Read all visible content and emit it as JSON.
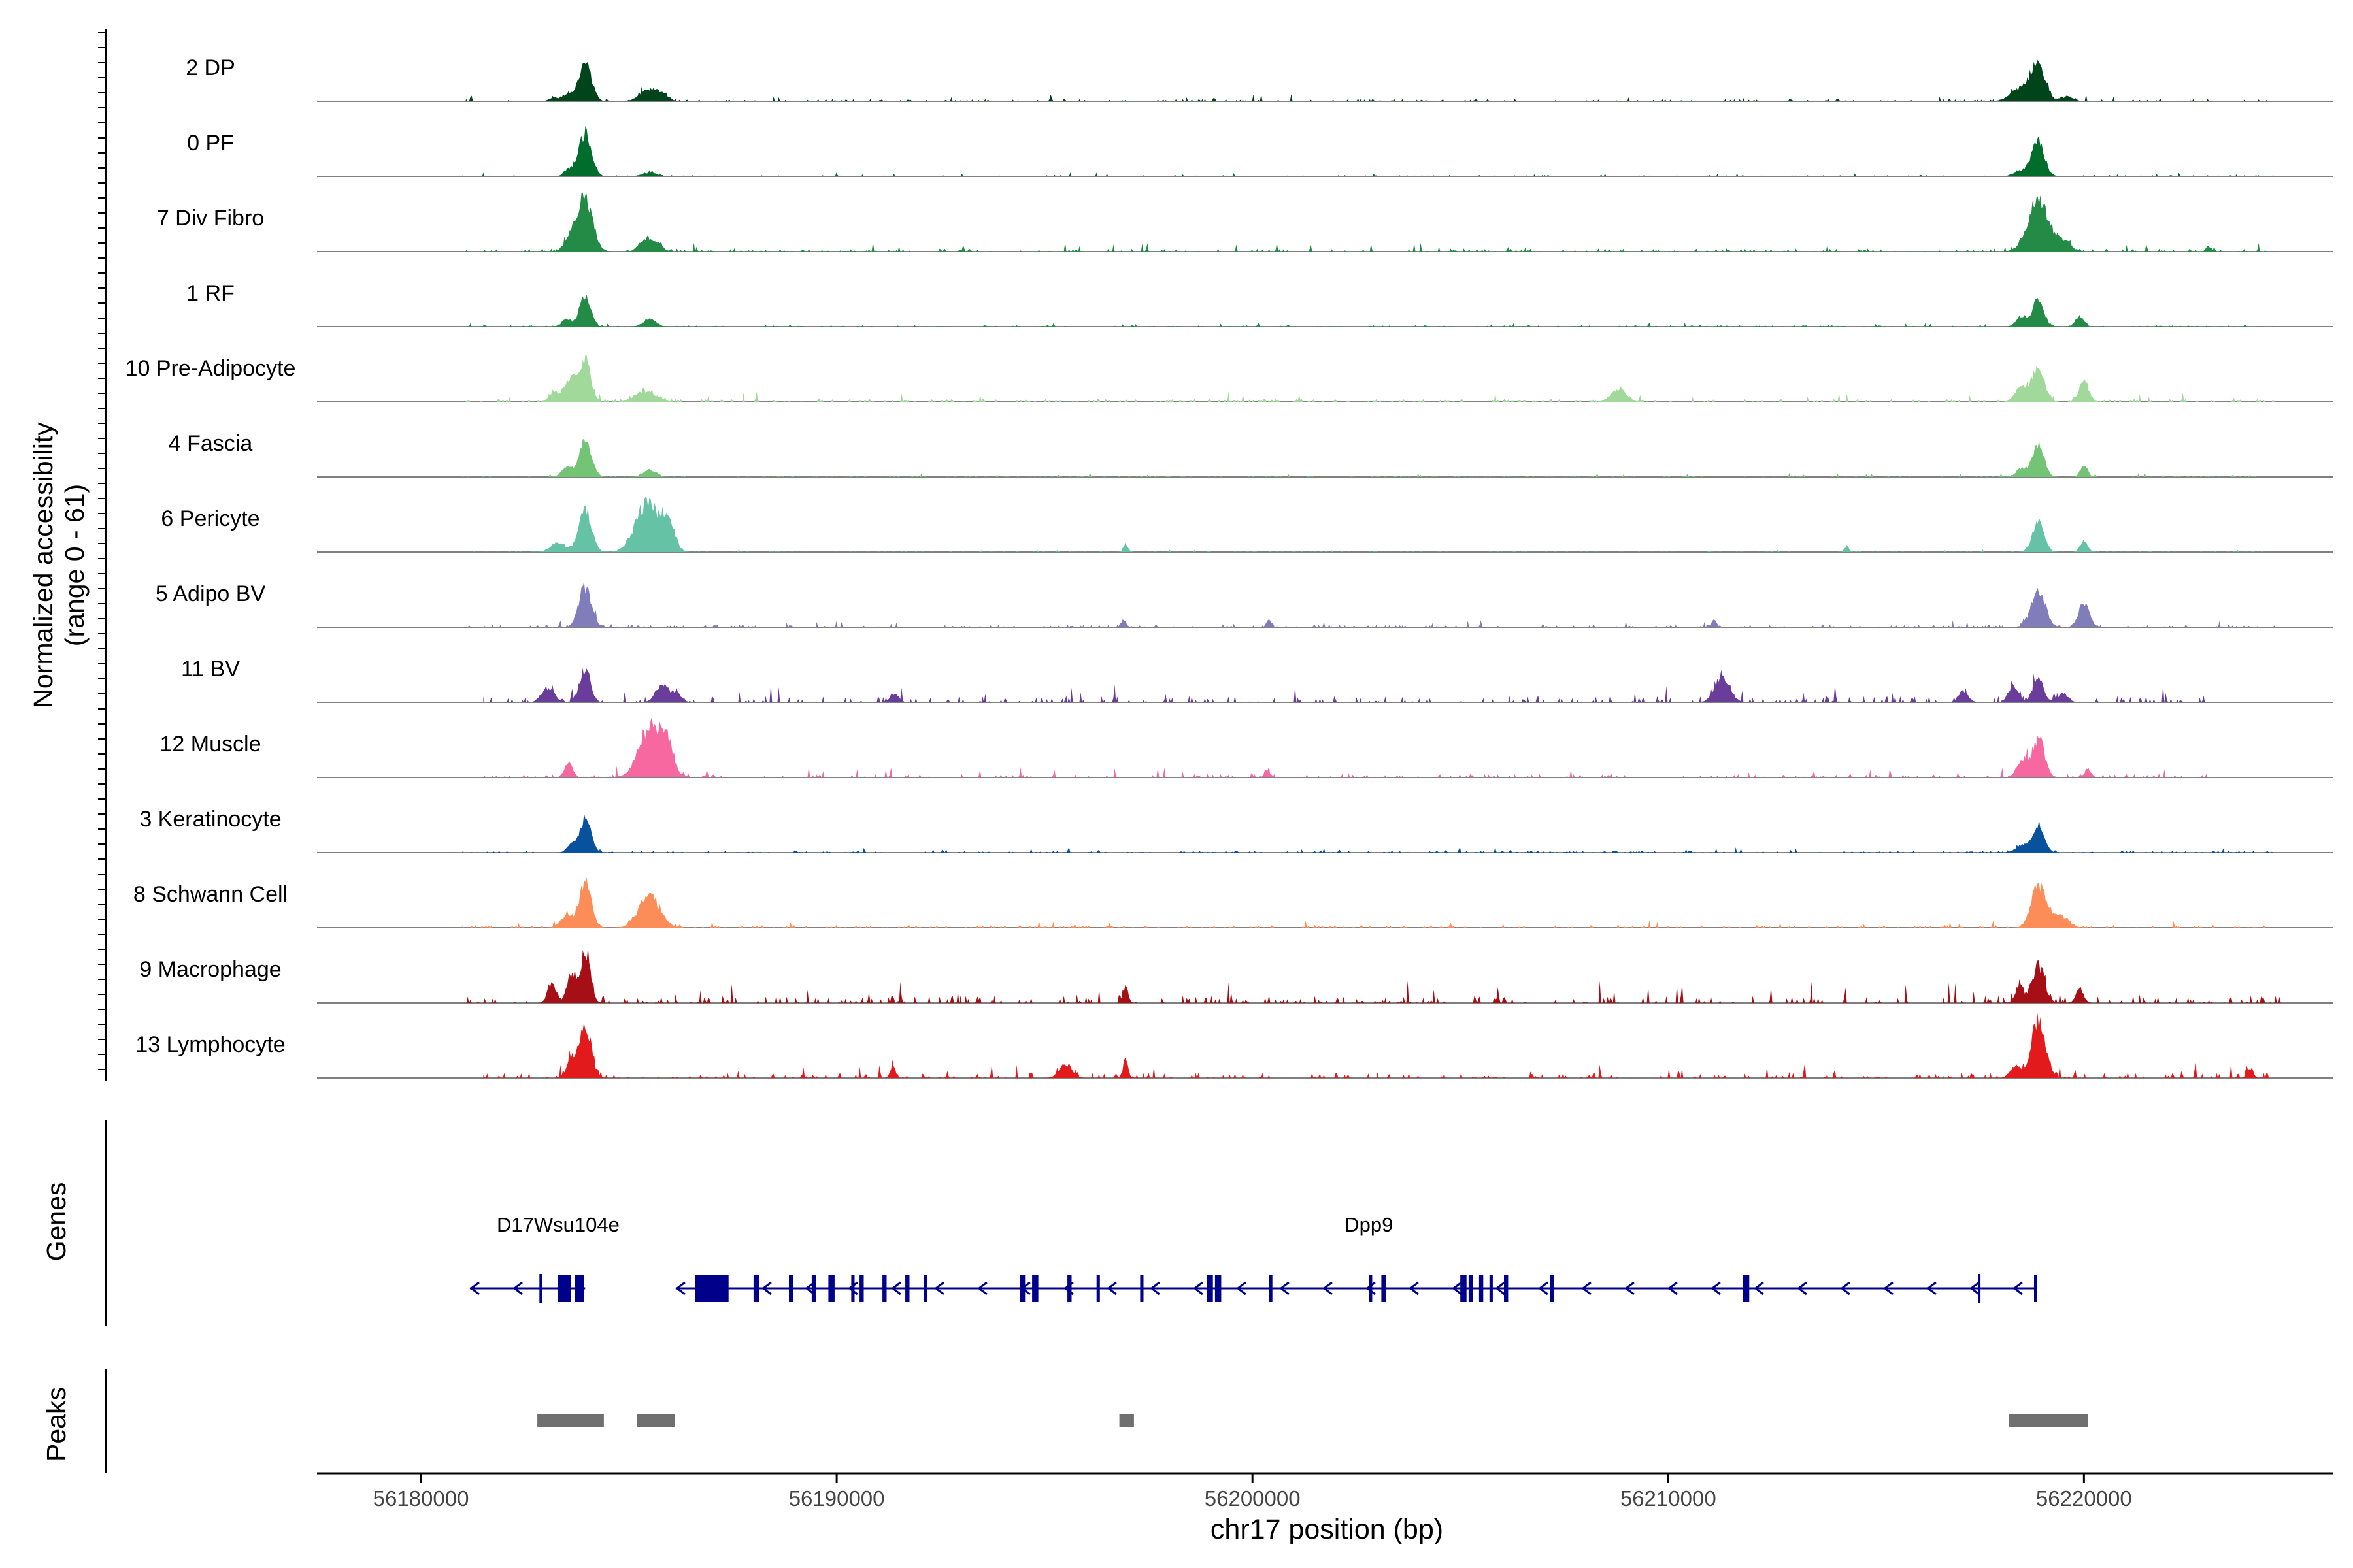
{
  "chart_data": {
    "type": "area",
    "ylabel_line1": "Normalized accessibility",
    "ylabel_line2": "(range 0 - 61)",
    "y_range": [
      0,
      61
    ],
    "xlabel": "chr17 position (bp)",
    "x_range": [
      56177500,
      56226000
    ],
    "x_ticks": [
      56180000,
      56190000,
      56200000,
      56210000,
      56220000
    ],
    "x_tick_labels": [
      "56180000",
      "56190000",
      "56200000",
      "56210000",
      "56220000"
    ],
    "genes_label": "Genes",
    "peaks_label": "Peaks",
    "tracks": [
      {
        "name": "2 DP",
        "color": "#00441b",
        "peaks": [
          [
            56183950,
            42,
            150
          ],
          [
            56183550,
            8,
            120
          ],
          [
            56183200,
            4,
            120
          ],
          [
            56185450,
            12,
            200
          ],
          [
            56185800,
            8,
            150
          ],
          [
            56218900,
            40,
            170
          ],
          [
            56218500,
            14,
            250
          ],
          [
            56219600,
            5,
            150
          ]
        ],
        "noise": 2.2,
        "span": [
          56181000,
          56224600
        ]
      },
      {
        "name": "0 PF",
        "color": "#006d2c",
        "peaks": [
          [
            56183950,
            48,
            150
          ],
          [
            56183550,
            8,
            110
          ],
          [
            56185500,
            4,
            180
          ],
          [
            56218900,
            38,
            150
          ],
          [
            56218500,
            6,
            180
          ]
        ],
        "noise": 1.2,
        "span": [
          56181000,
          56224600
        ]
      },
      {
        "name": "7 Div Fibro",
        "color": "#238b45",
        "peaks": [
          [
            56183950,
            58,
            180
          ],
          [
            56183600,
            14,
            150
          ],
          [
            56185400,
            14,
            150
          ],
          [
            56185700,
            8,
            120
          ],
          [
            56218900,
            55,
            250
          ],
          [
            56219500,
            10,
            180
          ],
          [
            56223000,
            6,
            60
          ]
        ],
        "noise": 3,
        "span": [
          56181000,
          56224600
        ]
      },
      {
        "name": "1 RF",
        "color": "#238b45",
        "peaks": [
          [
            56183950,
            36,
            130
          ],
          [
            56183500,
            8,
            110
          ],
          [
            56185500,
            8,
            150
          ],
          [
            56218900,
            32,
            130
          ],
          [
            56218500,
            12,
            120
          ],
          [
            56219900,
            12,
            100
          ]
        ],
        "noise": 1.3,
        "span": [
          56181000,
          56224600
        ]
      },
      {
        "name": "10 Pre-Adipocyte",
        "color": "#a1d99b",
        "peaks": [
          [
            56183950,
            44,
            130
          ],
          [
            56183600,
            26,
            150
          ],
          [
            56183200,
            10,
            120
          ],
          [
            56185400,
            12,
            250
          ],
          [
            56208800,
            14,
            180
          ],
          [
            56218900,
            36,
            150
          ],
          [
            56218500,
            16,
            150
          ],
          [
            56220000,
            22,
            120
          ]
        ],
        "noise": 3.2,
        "span": [
          56181000,
          56224600
        ]
      },
      {
        "name": "4 Fascia",
        "color": "#74c476",
        "peaks": [
          [
            56183950,
            40,
            150
          ],
          [
            56183500,
            10,
            120
          ],
          [
            56185500,
            8,
            150
          ],
          [
            56218900,
            36,
            140
          ],
          [
            56218500,
            10,
            120
          ],
          [
            56220000,
            12,
            90
          ]
        ],
        "noise": 1.3,
        "span": [
          56181000,
          56224600
        ]
      },
      {
        "name": "6 Pericyte",
        "color": "#66c2a4",
        "peaks": [
          [
            56183950,
            48,
            150
          ],
          [
            56183300,
            10,
            180
          ],
          [
            56185450,
            55,
            280
          ],
          [
            56185950,
            30,
            150
          ],
          [
            56196950,
            8,
            60
          ],
          [
            56214300,
            6,
            60
          ],
          [
            56218900,
            34,
            140
          ],
          [
            56220000,
            12,
            90
          ]
        ],
        "noise": 0.8,
        "span": [
          56181000,
          56224600
        ]
      },
      {
        "name": "5 Adipo BV",
        "color": "#807dba",
        "peaks": [
          [
            56183950,
            44,
            150
          ],
          [
            56196900,
            8,
            60
          ],
          [
            56200400,
            8,
            60
          ],
          [
            56211100,
            8,
            60
          ],
          [
            56218900,
            40,
            170
          ],
          [
            56220000,
            26,
            130
          ]
        ],
        "noise": 2.2,
        "span": [
          56181000,
          56224600
        ]
      },
      {
        "name": "11 BV",
        "color": "#6a3d9a",
        "peaks": [
          [
            56183950,
            36,
            130
          ],
          [
            56183050,
            16,
            150
          ],
          [
            56185800,
            20,
            150
          ],
          [
            56186150,
            10,
            120
          ],
          [
            56191400,
            10,
            100
          ],
          [
            56211300,
            28,
            180
          ],
          [
            56218900,
            26,
            130
          ],
          [
            56217100,
            12,
            120
          ],
          [
            56218300,
            18,
            120
          ],
          [
            56219500,
            10,
            120
          ]
        ],
        "noise": 6,
        "span": [
          56181500,
          56223000
        ]
      },
      {
        "name": "12 Muscle",
        "color": "#f768a1",
        "peaks": [
          [
            56183550,
            16,
            100
          ],
          [
            56185550,
            58,
            280
          ],
          [
            56185950,
            26,
            130
          ],
          [
            56218900,
            42,
            150
          ],
          [
            56218500,
            20,
            120
          ],
          [
            56220100,
            8,
            80
          ],
          [
            56200350,
            8,
            60
          ]
        ],
        "noise": 3.5,
        "span": [
          56181500,
          56223000
        ]
      },
      {
        "name": "3 Keratinocyte",
        "color": "#08519c",
        "peaks": [
          [
            56183950,
            36,
            140
          ],
          [
            56183600,
            8,
            100
          ],
          [
            56218900,
            30,
            140
          ],
          [
            56218500,
            8,
            150
          ]
        ],
        "noise": 1.8,
        "span": [
          56181000,
          56224600
        ]
      },
      {
        "name": "8 Schwann Cell",
        "color": "#fc8d59",
        "peaks": [
          [
            56183950,
            48,
            150
          ],
          [
            56183500,
            12,
            150
          ],
          [
            56185500,
            36,
            250
          ],
          [
            56218900,
            46,
            170
          ],
          [
            56219400,
            14,
            200
          ]
        ],
        "noise": 2.5,
        "span": [
          56181000,
          56224600
        ]
      },
      {
        "name": "9 Macrophage",
        "color": "#a50f15",
        "peaks": [
          [
            56183950,
            58,
            120
          ],
          [
            56183600,
            30,
            100
          ],
          [
            56183150,
            22,
            100
          ],
          [
            56196950,
            18,
            60
          ],
          [
            56218900,
            40,
            150
          ],
          [
            56218450,
            18,
            100
          ],
          [
            56219900,
            16,
            90
          ]
        ],
        "noise": 7,
        "span": [
          56181000,
          56224800
        ]
      },
      {
        "name": "13 Lymphocyte",
        "color": "#e31a1c",
        "peaks": [
          [
            56183950,
            61,
            140
          ],
          [
            56183600,
            22,
            100
          ],
          [
            56191350,
            14,
            60
          ],
          [
            56195500,
            14,
            150
          ],
          [
            56196950,
            20,
            60
          ],
          [
            56218900,
            60,
            170
          ],
          [
            56218350,
            14,
            120
          ],
          [
            56224000,
            10,
            70
          ]
        ],
        "noise": 5,
        "span": [
          56181500,
          56224500
        ]
      }
    ],
    "gene_color": "#00008b",
    "genes": [
      {
        "name": "D17Wsu104e",
        "start": 56181650,
        "end": 56183950,
        "strand": "-",
        "exons": [
          [
            56183300,
            56183600
          ],
          [
            56183700,
            56183930
          ],
          [
            56182850,
            56182870
          ]
        ],
        "label_pos": 56183300
      },
      {
        "name": "Dpp9",
        "start": 56186600,
        "end": 56218870,
        "strand": "-",
        "exons": [
          [
            56186600,
            56187400
          ],
          [
            56188000,
            56188130
          ],
          [
            56188850,
            56188950
          ],
          [
            56189400,
            56189500
          ],
          [
            56189800,
            56189950
          ],
          [
            56190350,
            56190430
          ],
          [
            56190550,
            56190650
          ],
          [
            56191100,
            56191200
          ],
          [
            56191650,
            56191750
          ],
          [
            56192100,
            56192180
          ],
          [
            56194400,
            56194530
          ],
          [
            56194700,
            56194850
          ],
          [
            56195550,
            56195650
          ],
          [
            56196250,
            56196330
          ],
          [
            56197300,
            56197380
          ],
          [
            56198900,
            56199050
          ],
          [
            56199100,
            56199250
          ],
          [
            56200400,
            56200480
          ],
          [
            56202800,
            56202880
          ],
          [
            56203100,
            56203220
          ],
          [
            56205000,
            56205150
          ],
          [
            56205200,
            56205300
          ],
          [
            56205450,
            56205550
          ],
          [
            56205700,
            56205780
          ],
          [
            56206050,
            56206150
          ],
          [
            56207150,
            56207250
          ],
          [
            56211800,
            56211950
          ],
          [
            56218800,
            56218870
          ],
          [
            56217450,
            56217470
          ]
        ],
        "label_pos": 56202800
      }
    ],
    "peaks": [
      [
        56182800,
        56184400
      ],
      [
        56185200,
        56186100
      ],
      [
        56196800,
        56197150
      ],
      [
        56218200,
        56220100
      ]
    ]
  }
}
